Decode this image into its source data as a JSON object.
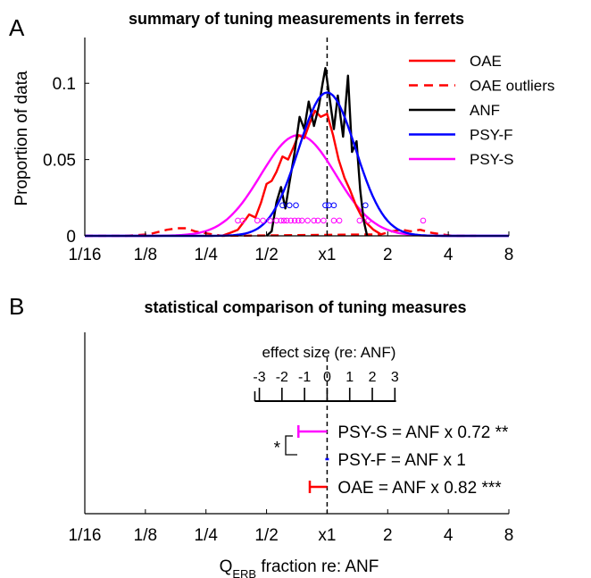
{
  "panels": {
    "a_letter": "A",
    "b_letter": "B"
  },
  "chart_data": [
    {
      "type": "line",
      "title": "summary of tuning measurements in ferrets",
      "xlabel": "",
      "ylabel": "Proportion of data",
      "x_scale": "log2",
      "xlim": [
        0.0625,
        8
      ],
      "ylim": [
        0,
        0.13
      ],
      "x_ticks": [
        0.0625,
        0.125,
        0.25,
        0.5,
        1,
        2,
        4,
        8
      ],
      "x_tick_labels": [
        "1/16",
        "1/8",
        "1/4",
        "1/2",
        "x1",
        "2",
        "4",
        "8"
      ],
      "y_ticks": [
        0,
        0.05,
        0.1
      ],
      "y_tick_labels": [
        "0",
        "0.05",
        "0.1"
      ],
      "reference_line_x": 1,
      "legend_position": "top-right",
      "series": [
        {
          "name": "OAE",
          "style": "solid",
          "color": "#ff0000",
          "points": [
            [
              0.3,
              0.0
            ],
            [
              0.33,
              0.002
            ],
            [
              0.36,
              0.004
            ],
            [
              0.39,
              0.01
            ],
            [
              0.41,
              0.014
            ],
            [
              0.44,
              0.012
            ],
            [
              0.47,
              0.022
            ],
            [
              0.5,
              0.034
            ],
            [
              0.53,
              0.036
            ],
            [
              0.56,
              0.042
            ],
            [
              0.6,
              0.052
            ],
            [
              0.64,
              0.05
            ],
            [
              0.68,
              0.058
            ],
            [
              0.72,
              0.066
            ],
            [
              0.77,
              0.064
            ],
            [
              0.82,
              0.074
            ],
            [
              0.87,
              0.082
            ],
            [
              0.93,
              0.078
            ],
            [
              1.0,
              0.08
            ],
            [
              1.07,
              0.066
            ],
            [
              1.14,
              0.05
            ],
            [
              1.22,
              0.038
            ],
            [
              1.3,
              0.03
            ],
            [
              1.39,
              0.02
            ],
            [
              1.48,
              0.013
            ],
            [
              1.58,
              0.008
            ],
            [
              1.7,
              0.004
            ],
            [
              1.85,
              0.001
            ]
          ]
        },
        {
          "name": "OAE outliers",
          "style": "dashed",
          "color": "#ff0000",
          "points": [
            [
              0.0625,
              0.0
            ],
            [
              0.1,
              0.0
            ],
            [
              0.13,
              0.001
            ],
            [
              0.16,
              0.004
            ],
            [
              0.18,
              0.005
            ],
            [
              0.2,
              0.005
            ],
            [
              0.22,
              0.003
            ],
            [
              0.24,
              0.002
            ],
            [
              0.27,
              0.001
            ],
            [
              0.3,
              0.0
            ],
            [
              1.85,
              0.001
            ],
            [
              2.1,
              0.003
            ],
            [
              2.35,
              0.004
            ],
            [
              2.6,
              0.003
            ],
            [
              2.9,
              0.004
            ],
            [
              3.3,
              0.002
            ],
            [
              3.7,
              0.001
            ],
            [
              4.2,
              0.0
            ],
            [
              5.5,
              0.0
            ]
          ]
        },
        {
          "name": "ANF",
          "style": "solid",
          "color": "#000000",
          "points": [
            [
              0.5,
              0.0
            ],
            [
              0.53,
              0.003
            ],
            [
              0.56,
              0.022
            ],
            [
              0.59,
              0.032
            ],
            [
              0.62,
              0.018
            ],
            [
              0.65,
              0.035
            ],
            [
              0.69,
              0.055
            ],
            [
              0.73,
              0.078
            ],
            [
              0.77,
              0.07
            ],
            [
              0.81,
              0.088
            ],
            [
              0.86,
              0.072
            ],
            [
              0.91,
              0.085
            ],
            [
              0.95,
              0.1
            ],
            [
              0.98,
              0.11
            ],
            [
              1.03,
              0.09
            ],
            [
              1.08,
              0.07
            ],
            [
              1.13,
              0.092
            ],
            [
              1.2,
              0.065
            ],
            [
              1.27,
              0.105
            ],
            [
              1.33,
              0.055
            ],
            [
              1.4,
              0.062
            ],
            [
              1.46,
              0.03
            ],
            [
              1.52,
              0.01
            ],
            [
              1.58,
              0.0
            ]
          ]
        },
        {
          "name": "PSY-F",
          "style": "solid",
          "color": "#0000ff",
          "center": 1.0,
          "peak": 0.094,
          "sigma_log2": 0.47
        },
        {
          "name": "PSY-S",
          "style": "solid",
          "color": "#ff00ff",
          "center": 0.72,
          "peak": 0.066,
          "sigma_log2": 0.62
        }
      ],
      "markers": [
        {
          "series": "PSY-F",
          "y": 0.02,
          "x": [
            0.6,
            0.65,
            0.7,
            0.98,
            1.02,
            1.08,
            1.55
          ]
        },
        {
          "series": "PSY-S",
          "y": 0.01,
          "x": [
            0.36,
            0.38,
            0.45,
            0.48,
            0.52,
            0.56,
            0.59,
            0.61,
            0.63,
            0.66,
            0.69,
            0.72,
            0.75,
            0.8,
            0.86,
            0.9,
            0.96,
            1.08,
            1.15,
            1.45,
            1.6,
            3.0
          ]
        }
      ]
    },
    {
      "type": "scatter",
      "title": "statistical comparison of tuning measures",
      "xlabel": "Q",
      "xlabel_sub": "ERB",
      "xlabel_rest": " fraction re: ANF",
      "x_scale": "log2",
      "xlim": [
        0.0625,
        8
      ],
      "x_ticks": [
        0.0625,
        0.125,
        0.25,
        0.5,
        1,
        2,
        4,
        8
      ],
      "x_tick_labels": [
        "1/16",
        "1/8",
        "1/4",
        "1/2",
        "x1",
        "2",
        "4",
        "8"
      ],
      "reference_line_x": 1,
      "effect_size_axis": {
        "label": "effect size (re: ANF)",
        "ticks": [
          -3,
          -2,
          -1,
          0,
          1,
          2,
          3
        ],
        "tick_labels": [
          "-3",
          "-2",
          "-1",
          "0",
          "1",
          "2",
          "3"
        ]
      },
      "rows": [
        {
          "label": "PSY-S = ANF x 0.72 **",
          "value": 0.72,
          "ci": [
            0.72,
            1.0
          ],
          "color": "#ff00ff"
        },
        {
          "label": "PSY-F = ANF x 1",
          "value": 1.0,
          "ci": [
            1.0,
            1.0
          ],
          "color": "#0000ff"
        },
        {
          "label": "OAE = ANF x 0.82 ***",
          "value": 0.82,
          "ci": [
            0.82,
            1.0
          ],
          "color": "#ff0000"
        }
      ],
      "comparison": {
        "between": [
          "PSY-S",
          "PSY-F"
        ],
        "mark": "*"
      }
    }
  ]
}
